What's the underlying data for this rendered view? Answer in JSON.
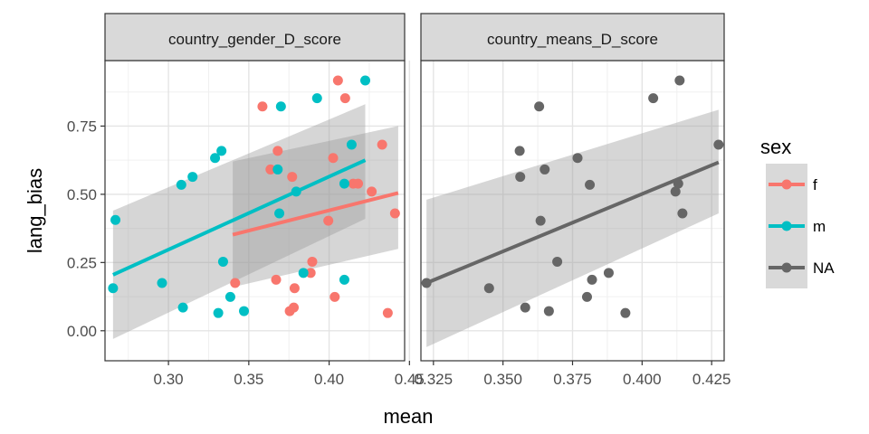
{
  "chart_data": {
    "type": "scatter",
    "xlabel": "mean",
    "ylabel": "lang_bias",
    "ylim": [
      -0.11,
      0.99
    ],
    "y_ticks": [
      0.0,
      0.25,
      0.5,
      0.75
    ],
    "y_tick_labels": [
      "0.00",
      "0.25",
      "0.50",
      "0.75"
    ],
    "grid": true,
    "legend": {
      "title": "sex",
      "position": "right",
      "entries": [
        {
          "label": "f",
          "color": "#F8766D"
        },
        {
          "label": "m",
          "color": "#00BFC4"
        },
        {
          "label": "NA",
          "color": "#666666"
        }
      ]
    },
    "panels": [
      {
        "title": "country_gender_D_score",
        "xlim": [
          0.2605,
          0.447
        ],
        "x_ticks": [
          0.3,
          0.35,
          0.4,
          0.45
        ],
        "x_tick_labels": [
          "0.30",
          "0.35",
          "0.40",
          "0.45"
        ],
        "series": [
          {
            "name": "f",
            "color": "#F8766D",
            "points": [
              [
                0.3585,
                0.822
              ],
              [
                0.3635,
                0.591
              ],
              [
                0.367,
                0.187
              ],
              [
                0.368,
                0.659
              ],
              [
                0.3755,
                0.072
              ],
              [
                0.377,
                0.564
              ],
              [
                0.378,
                0.085
              ],
              [
                0.3785,
                0.156
              ],
              [
                0.3885,
                0.212
              ],
              [
                0.3895,
                0.253
              ],
              [
                0.3995,
                0.403
              ],
              [
                0.4025,
                0.633
              ],
              [
                0.4035,
                0.124
              ],
              [
                0.4055,
                0.917
              ],
              [
                0.41,
                0.852
              ],
              [
                0.415,
                0.539
              ],
              [
                0.418,
                0.539
              ],
              [
                0.4265,
                0.51
              ],
              [
                0.433,
                0.682
              ],
              [
                0.4365,
                0.065
              ],
              [
                0.441,
                0.43
              ],
              [
                0.3415,
                0.175
              ]
            ],
            "fit": {
              "x": [
                0.34,
                0.443
              ],
              "y": [
                0.352,
                0.505
              ],
              "ci_lower": [
                0.16,
                0.3
              ],
              "ci_upper": [
                0.62,
                0.75
              ]
            }
          },
          {
            "name": "m",
            "color": "#00BFC4",
            "points": [
              [
                0.2655,
                0.156
              ],
              [
                0.267,
                0.406
              ],
              [
                0.296,
                0.175
              ],
              [
                0.308,
                0.535
              ],
              [
                0.309,
                0.085
              ],
              [
                0.315,
                0.564
              ],
              [
                0.329,
                0.633
              ],
              [
                0.331,
                0.065
              ],
              [
                0.333,
                0.659
              ],
              [
                0.334,
                0.253
              ],
              [
                0.3385,
                0.124
              ],
              [
                0.347,
                0.072
              ],
              [
                0.368,
                0.591
              ],
              [
                0.369,
                0.43
              ],
              [
                0.37,
                0.822
              ],
              [
                0.3795,
                0.51
              ],
              [
                0.384,
                0.212
              ],
              [
                0.3925,
                0.852
              ],
              [
                0.4095,
                0.539
              ],
              [
                0.4095,
                0.187
              ],
              [
                0.414,
                0.682
              ],
              [
                0.4225,
                0.917
              ]
            ],
            "fit": {
              "x": [
                0.2655,
                0.4225
              ],
              "y": [
                0.205,
                0.625
              ],
              "ci_lower": [
                -0.03,
                0.41
              ],
              "ci_upper": [
                0.44,
                0.83
              ]
            }
          }
        ]
      },
      {
        "title": "country_means_D_score",
        "xlim": [
          0.3205,
          0.4295
        ],
        "x_ticks": [
          0.325,
          0.35,
          0.375,
          0.4,
          0.425
        ],
        "x_tick_labels": [
          "0.325",
          "0.350",
          "0.375",
          "0.400",
          "0.425"
        ],
        "series": [
          {
            "name": "NA",
            "color": "#666666",
            "points": [
              [
                0.3225,
                0.175
              ],
              [
                0.345,
                0.156
              ],
              [
                0.356,
                0.659
              ],
              [
                0.3562,
                0.564
              ],
              [
                0.358,
                0.085
              ],
              [
                0.363,
                0.822
              ],
              [
                0.3635,
                0.403
              ],
              [
                0.365,
                0.591
              ],
              [
                0.3665,
                0.072
              ],
              [
                0.3695,
                0.253
              ],
              [
                0.3768,
                0.633
              ],
              [
                0.3802,
                0.124
              ],
              [
                0.3812,
                0.535
              ],
              [
                0.382,
                0.187
              ],
              [
                0.388,
                0.212
              ],
              [
                0.394,
                0.065
              ],
              [
                0.404,
                0.852
              ],
              [
                0.412,
                0.51
              ],
              [
                0.413,
                0.539
              ],
              [
                0.4135,
                0.917
              ],
              [
                0.4145,
                0.43
              ],
              [
                0.4275,
                0.682
              ]
            ],
            "fit": {
              "x": [
                0.3225,
                0.4275
              ],
              "y": [
                0.175,
                0.617
              ],
              "ci_lower": [
                -0.06,
                0.43
              ],
              "ci_upper": [
                0.48,
                0.81
              ]
            }
          }
        ]
      }
    ]
  }
}
